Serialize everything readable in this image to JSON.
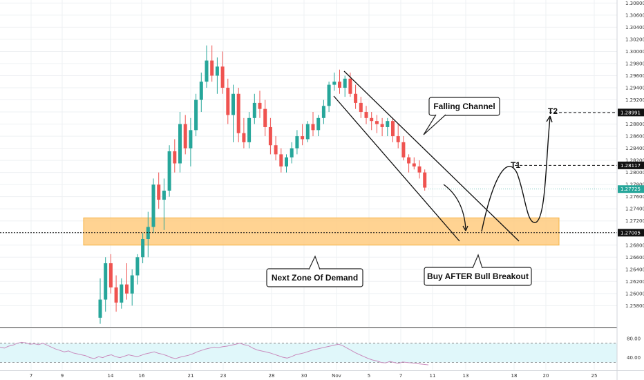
{
  "colors": {
    "bull": "#26a69a",
    "bear": "#ef5350",
    "zone_fill": "#ffcc80",
    "zone_stroke": "#f5a623",
    "line": "#111111",
    "rsi_line": "#c98bbd",
    "rsi_band": "#e0f7fa",
    "current_price_tag": "#26a69a",
    "price_tag": "#111111"
  },
  "chart_data": {
    "type": "candlestick",
    "y_axis": {
      "min": 1.2545,
      "max": 1.3085,
      "tick_labels": [
        "1.25800",
        "1.26000",
        "1.26200",
        "1.26400",
        "1.26600",
        "1.26800",
        "1.27000",
        "1.27200",
        "1.27400",
        "1.27600",
        "1.27800",
        "1.28000",
        "1.28200",
        "1.28400",
        "1.28600",
        "1.28800",
        "1.29000",
        "1.29200",
        "1.29400",
        "1.29600",
        "1.29800",
        "1.30000",
        "1.30200",
        "1.30400",
        "1.30600",
        "1.30800"
      ]
    },
    "x_axis": {
      "tick_labels": [
        "7",
        "9",
        "14",
        "16",
        "21",
        "23",
        "28",
        "30",
        "Nov",
        "5",
        "7",
        "11",
        "13",
        "18",
        "20",
        "25"
      ]
    },
    "candles": [
      [
        1.256,
        1.2625,
        1.255,
        1.259
      ],
      [
        1.259,
        1.266,
        1.257,
        1.265
      ],
      [
        1.265,
        1.2665,
        1.26,
        1.261
      ],
      [
        1.261,
        1.263,
        1.257,
        1.2585
      ],
      [
        1.2585,
        1.2625,
        1.2575,
        1.2615
      ],
      [
        1.2615,
        1.265,
        1.259,
        1.26
      ],
      [
        1.26,
        1.264,
        1.258,
        1.263
      ],
      [
        1.263,
        1.2665,
        1.2615,
        1.266
      ],
      [
        1.266,
        1.27,
        1.265,
        1.269
      ],
      [
        1.269,
        1.2735,
        1.266,
        1.271
      ],
      [
        1.271,
        1.279,
        1.27,
        1.278
      ],
      [
        1.278,
        1.28,
        1.274,
        1.2755
      ],
      [
        1.2755,
        1.279,
        1.2705,
        1.277
      ],
      [
        1.277,
        1.2845,
        1.276,
        1.2835
      ],
      [
        1.2835,
        1.2855,
        1.28,
        1.2815
      ],
      [
        1.2815,
        1.29,
        1.28,
        1.288
      ],
      [
        1.288,
        1.2895,
        1.283,
        1.284
      ],
      [
        1.284,
        1.289,
        1.281,
        1.287
      ],
      [
        1.287,
        1.293,
        1.286,
        1.292
      ],
      [
        1.292,
        1.2965,
        1.29,
        1.295
      ],
      [
        1.295,
        1.301,
        1.294,
        1.2985
      ],
      [
        1.2985,
        1.301,
        1.295,
        1.296
      ],
      [
        1.296,
        1.299,
        1.293,
        1.2975
      ],
      [
        1.2975,
        1.3,
        1.293,
        1.294
      ],
      [
        1.294,
        1.2955,
        1.288,
        1.2895
      ],
      [
        1.2895,
        1.2945,
        1.285,
        1.293
      ],
      [
        1.293,
        1.294,
        1.285,
        1.2865
      ],
      [
        1.2865,
        1.289,
        1.284,
        1.285
      ],
      [
        1.285,
        1.29,
        1.284,
        1.289
      ],
      [
        1.289,
        1.293,
        1.288,
        1.2915
      ],
      [
        1.2915,
        1.2935,
        1.289,
        1.2905
      ],
      [
        1.2905,
        1.292,
        1.286,
        1.2875
      ],
      [
        1.2875,
        1.289,
        1.283,
        1.2845
      ],
      [
        1.2845,
        1.286,
        1.282,
        1.283
      ],
      [
        1.283,
        1.284,
        1.28,
        1.281
      ],
      [
        1.281,
        1.283,
        1.28,
        1.2825
      ],
      [
        1.2825,
        1.285,
        1.2815,
        1.284
      ],
      [
        1.284,
        1.287,
        1.283,
        1.286
      ],
      [
        1.286,
        1.288,
        1.2845,
        1.2855
      ],
      [
        1.2855,
        1.2885,
        1.285,
        1.288
      ],
      [
        1.288,
        1.29,
        1.286,
        1.287
      ],
      [
        1.287,
        1.2895,
        1.286,
        1.289
      ],
      [
        1.289,
        1.292,
        1.288,
        1.291
      ],
      [
        1.291,
        1.295,
        1.29,
        1.2945
      ],
      [
        1.2945,
        1.2965,
        1.2935,
        1.295
      ],
      [
        1.295,
        1.297,
        1.293,
        1.294
      ],
      [
        1.294,
        1.296,
        1.2925,
        1.2955
      ],
      [
        1.2955,
        1.2965,
        1.2925,
        1.293
      ],
      [
        1.293,
        1.2945,
        1.2905,
        1.2915
      ],
      [
        1.2915,
        1.2925,
        1.289,
        1.29
      ],
      [
        1.29,
        1.291,
        1.288,
        1.289
      ],
      [
        1.289,
        1.29,
        1.287,
        1.2885
      ],
      [
        1.2885,
        1.2895,
        1.2865,
        1.288
      ],
      [
        1.288,
        1.289,
        1.286,
        1.2875
      ],
      [
        1.2875,
        1.289,
        1.286,
        1.2885
      ],
      [
        1.2885,
        1.289,
        1.285,
        1.286
      ],
      [
        1.286,
        1.288,
        1.284,
        1.285
      ],
      [
        1.285,
        1.286,
        1.282,
        1.2825
      ],
      [
        1.2825,
        1.283,
        1.28,
        1.2815
      ],
      [
        1.2815,
        1.2825,
        1.2805,
        1.281
      ],
      [
        1.281,
        1.282,
        1.279,
        1.28
      ],
      [
        1.28,
        1.2805,
        1.277,
        1.2775
      ]
    ],
    "levels": [
      {
        "label": "1.28991",
        "value": 1.28991,
        "target": "T2"
      },
      {
        "label": "1.28117",
        "value": 1.28117,
        "target": "T1"
      },
      {
        "label": "1.27005",
        "value": 1.27005,
        "target": ""
      }
    ],
    "current_price": {
      "label": "1.27725",
      "value": 1.27725
    },
    "demand_zone": {
      "low": 1.268,
      "high": 1.2725
    },
    "rsi": {
      "tick_labels": [
        "80.00",
        "40.00"
      ],
      "band_low": 30,
      "band_high": 70,
      "min": 15,
      "max": 100,
      "values": [
        62,
        60,
        64,
        66,
        70,
        72,
        71,
        68,
        69,
        67,
        70,
        66,
        62,
        58,
        55,
        52,
        54,
        50,
        48,
        46,
        44,
        40,
        38,
        42,
        40,
        44,
        46,
        42,
        40,
        43,
        46,
        44,
        42,
        45,
        48,
        50,
        52,
        49,
        47,
        44,
        40,
        38,
        41,
        43,
        45,
        48,
        52,
        55,
        58,
        60,
        62,
        61,
        63,
        64,
        66,
        68,
        70,
        67,
        65,
        60,
        56,
        54,
        52,
        50,
        47,
        44,
        41,
        39,
        42,
        46,
        48,
        50,
        53,
        56,
        58,
        60,
        62,
        64,
        66,
        68,
        65,
        60,
        55,
        50,
        46,
        42,
        38,
        35,
        33,
        30,
        29,
        32,
        30,
        28,
        31,
        30,
        29,
        28,
        27,
        26,
        25
      ]
    },
    "annotations": {
      "falling_channel": "Falling Channel",
      "next_zone": "Next Zone Of Demand",
      "buy_after": "Buy AFTER Bull Breakout",
      "t1": "T1",
      "t2": "T2"
    }
  }
}
